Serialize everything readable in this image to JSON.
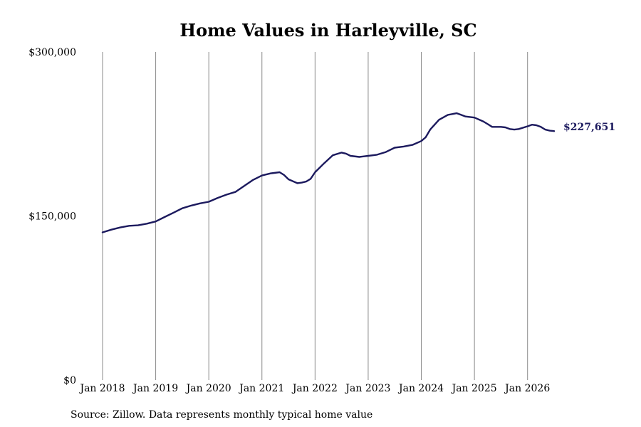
{
  "chart_data": {
    "type": "line",
    "title": "Home Values in Harleyville, SC",
    "source": "Source: Zillow. Data represents monthly typical home value",
    "end_label": "$227,651",
    "xlabel": "",
    "ylabel": "",
    "x_ticks": [
      "Jan 2018",
      "Jan 2019",
      "Jan 2020",
      "Jan 2021",
      "Jan 2022",
      "Jan 2023",
      "Jan 2024",
      "Jan 2025",
      "Jan 2026"
    ],
    "y_ticks": [
      "$0",
      "$150,000",
      "$300,000"
    ],
    "ylim": [
      0,
      300000
    ],
    "xlim": [
      "2018-01",
      "2026-07"
    ],
    "grid": "vertical",
    "line_color": "#1c1a5e",
    "series": [
      {
        "x": [
          "2018-01",
          "2018-03",
          "2018-05",
          "2018-07",
          "2018-09",
          "2018-11",
          "2019-01",
          "2019-03",
          "2019-05",
          "2019-07",
          "2019-09",
          "2019-11",
          "2020-01",
          "2020-03",
          "2020-05",
          "2020-07",
          "2020-09",
          "2020-11",
          "2021-01",
          "2021-03",
          "2021-05",
          "2021-06",
          "2021-07",
          "2021-09",
          "2021-10",
          "2021-11",
          "2021-12",
          "2022-01",
          "2022-03",
          "2022-05",
          "2022-07",
          "2022-08",
          "2022-09",
          "2022-11",
          "2023-01",
          "2023-03",
          "2023-05",
          "2023-07",
          "2023-09",
          "2023-11",
          "2024-01",
          "2024-02",
          "2024-03",
          "2024-05",
          "2024-07",
          "2024-09",
          "2024-10",
          "2024-11",
          "2025-01",
          "2025-03",
          "2025-04",
          "2025-05",
          "2025-07",
          "2025-08",
          "2025-09",
          "2025-10",
          "2025-11",
          "2026-01",
          "2026-02",
          "2026-03",
          "2026-04",
          "2026-05",
          "2026-06",
          "2026-07"
        ],
        "values": [
          135000,
          137500,
          139500,
          141000,
          141500,
          143000,
          145000,
          149000,
          153000,
          157000,
          159500,
          161500,
          163000,
          166500,
          169500,
          172000,
          177500,
          183000,
          187000,
          189000,
          190000,
          187500,
          183500,
          180000,
          180500,
          181500,
          184000,
          190000,
          198000,
          205500,
          208000,
          207000,
          205000,
          204000,
          205000,
          206000,
          208500,
          212500,
          213500,
          215000,
          218500,
          222000,
          229000,
          238000,
          242500,
          244000,
          242500,
          241000,
          240000,
          236500,
          234000,
          231500,
          231500,
          231000,
          229500,
          229000,
          229500,
          232000,
          233500,
          233000,
          231500,
          229000,
          228000,
          227651
        ]
      }
    ]
  }
}
